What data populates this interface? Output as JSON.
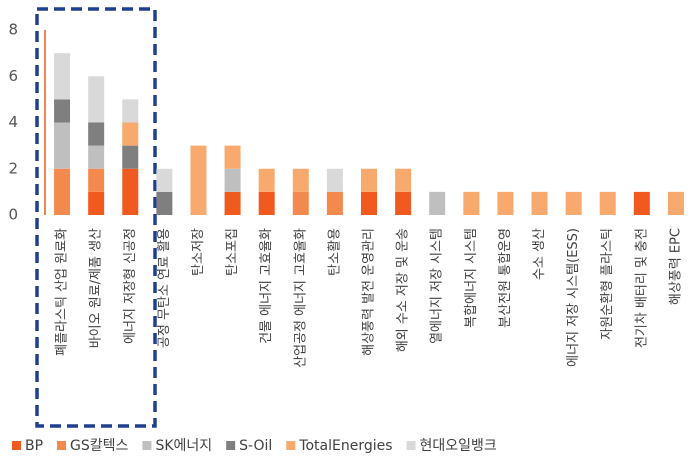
{
  "chart_data": {
    "type": "bar",
    "stacked": true,
    "categories": [
      "폐플라스틱 산업 원료화",
      "바이오 원료/제품 생산",
      "에너지 저장형 신공정",
      "공정 무탄소 연료 활용",
      "탄소저장",
      "탄소포집",
      "건물 에너지 고효율화",
      "산업공정 에너지 고효율화",
      "탄소활용",
      "해상풍력 발전 운영관리",
      "해외 수소 저장 및 운송",
      "열에너지 저장 시스템",
      "복합에너지 시스템",
      "분산전원 통합운영",
      "수소 생산",
      "에너지 저장 시스템(ESS)",
      "자원순환형 플라스틱",
      "전기차 배터리 및 충전",
      "해상풍력 EPC"
    ],
    "series": [
      {
        "name": "BP",
        "color": "#f15a1f",
        "values": [
          0,
          1,
          2,
          0,
          0,
          1,
          1,
          0,
          0,
          1,
          1,
          0,
          0,
          0,
          0,
          0,
          0,
          1,
          0
        ]
      },
      {
        "name": "GS칼텍스",
        "color": "#f4894e",
        "values": [
          2,
          1,
          0,
          0,
          0,
          0,
          0,
          1,
          1,
          0,
          0,
          0,
          0,
          0,
          0,
          0,
          0,
          0,
          0
        ]
      },
      {
        "name": "SK에너지",
        "color": "#bfbfbf",
        "values": [
          2,
          1,
          0,
          0,
          0,
          1,
          0,
          0,
          0,
          0,
          0,
          1,
          0,
          0,
          0,
          0,
          0,
          0,
          0
        ]
      },
      {
        "name": "S-Oil",
        "color": "#7f7f7f",
        "values": [
          1,
          1,
          1,
          1,
          0,
          0,
          0,
          0,
          0,
          0,
          0,
          0,
          0,
          0,
          0,
          0,
          0,
          0,
          0
        ]
      },
      {
        "name": "TotalEnergies",
        "color": "#f7a96e",
        "values": [
          0,
          0,
          1,
          0,
          3,
          1,
          1,
          1,
          0,
          1,
          1,
          0,
          1,
          1,
          1,
          1,
          1,
          0,
          1
        ]
      },
      {
        "name": "현대오일뱅크",
        "color": "#d9d9d9",
        "values": [
          2,
          2,
          1,
          1,
          0,
          0,
          0,
          0,
          1,
          0,
          0,
          0,
          0,
          0,
          0,
          0,
          0,
          0,
          0
        ]
      }
    ],
    "ylim": [
      0,
      8
    ],
    "yticks": [
      0,
      2,
      4,
      6,
      8
    ],
    "grid": false,
    "legend": "bottom"
  }
}
